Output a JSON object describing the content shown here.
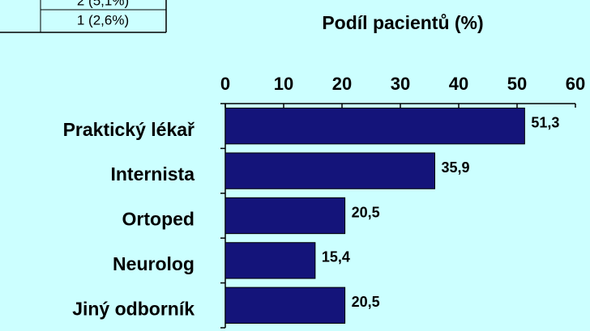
{
  "table": {
    "rows": [
      [
        "2 (5,1%)"
      ],
      [
        "1 (2,6%)"
      ]
    ]
  },
  "chart_data": {
    "type": "barh",
    "title": "Podíl pacientů (%)",
    "categories": [
      "Praktický lékař",
      "Internista",
      "Ortoped",
      "Neurolog",
      "Jiný odborník"
    ],
    "values": [
      51.3,
      35.9,
      20.5,
      15.4,
      20.5
    ],
    "value_labels": [
      "51,3",
      "35,9",
      "20,5",
      "15,4",
      "20,5"
    ],
    "color": "#14147a",
    "xlim": [
      0,
      60
    ],
    "xticks": [
      0,
      10,
      20,
      30,
      40,
      50,
      60
    ]
  }
}
